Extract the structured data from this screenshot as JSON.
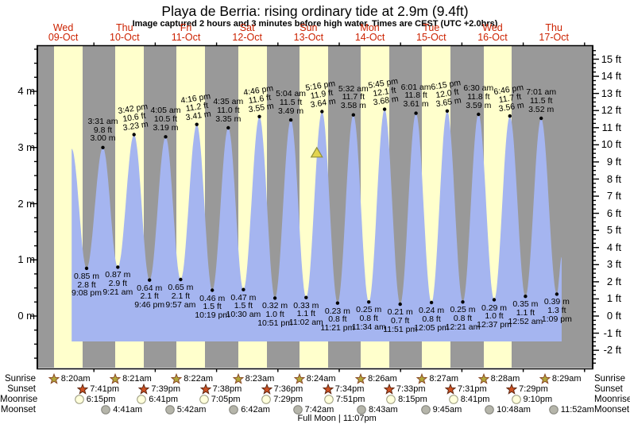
{
  "chart_data": {
    "type": "area",
    "title": "Playa de Berria: rising ordinary tide at 2.9m (9.4ft)",
    "subtitle": "Image captured 2 hours and 3 minutes before high water. Times are CEST (UTC +2.0hrs)",
    "days": [
      {
        "dow": "Wed",
        "date": "09-Oct"
      },
      {
        "dow": "Thu",
        "date": "10-Oct"
      },
      {
        "dow": "Fri",
        "date": "11-Oct"
      },
      {
        "dow": "Sat",
        "date": "12-Oct"
      },
      {
        "dow": "Sun",
        "date": "13-Oct"
      },
      {
        "dow": "Mon",
        "date": "14-Oct"
      },
      {
        "dow": "Tue",
        "date": "15-Oct"
      },
      {
        "dow": "Wed",
        "date": "16-Oct"
      },
      {
        "dow": "Thu",
        "date": "17-Oct"
      }
    ],
    "y_axis": {
      "left": {
        "unit": "m",
        "ticks": [
          {
            "v": 4,
            "label": "4 m"
          },
          {
            "v": 3,
            "label": "3 m"
          },
          {
            "v": 2,
            "label": "2 m"
          },
          {
            "v": 1,
            "label": "1 m"
          },
          {
            "v": 0,
            "label": "0 m"
          }
        ]
      },
      "right": {
        "unit": "ft",
        "ticks": [
          {
            "v": 15,
            "label": "15 ft"
          },
          {
            "v": 14,
            "label": "14 ft"
          },
          {
            "v": 13,
            "label": "13 ft"
          },
          {
            "v": 12,
            "label": "12 ft"
          },
          {
            "v": 11,
            "label": "11 ft"
          },
          {
            "v": 10,
            "label": "10 ft"
          },
          {
            "v": 9,
            "label": "9 ft"
          },
          {
            "v": 8,
            "label": "8 ft"
          },
          {
            "v": 7,
            "label": "7 ft"
          },
          {
            "v": 6,
            "label": "6 ft"
          },
          {
            "v": 5,
            "label": "5 ft"
          },
          {
            "v": 4,
            "label": "4 ft"
          },
          {
            "v": 3,
            "label": "3 ft"
          },
          {
            "v": 2,
            "label": "2 ft"
          },
          {
            "v": 1,
            "label": "1 ft"
          },
          {
            "v": 0,
            "label": "0 ft"
          },
          {
            "v": -1,
            "label": "-1 ft"
          },
          {
            "v": -2,
            "label": "-2 ft"
          }
        ]
      }
    },
    "events": [
      {
        "kind": "high",
        "t": 0.637,
        "v": 2.98,
        "labeled": false
      },
      {
        "kind": "low",
        "t": 0.8806,
        "v": 0.85,
        "m": "0.85 m",
        "ft": "2.8 ft",
        "time": "9:08 pm"
      },
      {
        "kind": "high",
        "t": 1.1465,
        "v": 3.0,
        "time": "3:31 am",
        "ft": "9.8 ft",
        "m": "3.00 m"
      },
      {
        "kind": "low",
        "t": 1.3896,
        "v": 0.87,
        "m": "0.87 m",
        "ft": "2.9 ft",
        "time": "9:21 am"
      },
      {
        "kind": "high",
        "t": 1.6542,
        "v": 3.23,
        "time": "3:42 pm",
        "ft": "10.6 ft",
        "m": "3.23 m",
        "tilt": true
      },
      {
        "kind": "low",
        "t": 1.9069,
        "v": 0.64,
        "m": "0.64 m",
        "ft": "2.1 ft",
        "time": "9:46 pm"
      },
      {
        "kind": "high",
        "t": 2.1701,
        "v": 3.19,
        "time": "4:05 am",
        "ft": "10.5 ft",
        "m": "3.19 m"
      },
      {
        "kind": "low",
        "t": 2.4146,
        "v": 0.65,
        "m": "0.65 m",
        "ft": "2.1 ft",
        "time": "9:57 am"
      },
      {
        "kind": "high",
        "t": 2.6778,
        "v": 3.41,
        "time": "4:16 pm",
        "ft": "11.2 ft",
        "m": "3.41 m",
        "tilt": true
      },
      {
        "kind": "low",
        "t": 2.9299,
        "v": 0.46,
        "m": "0.46 m",
        "ft": "1.5 ft",
        "time": "10:19 pm"
      },
      {
        "kind": "high",
        "t": 3.191,
        "v": 3.35,
        "time": "4:35 am",
        "ft": "11.0 ft",
        "m": "3.35 m"
      },
      {
        "kind": "low",
        "t": 3.4375,
        "v": 0.47,
        "m": "0.47 m",
        "ft": "1.5 ft",
        "time": "10:30 am"
      },
      {
        "kind": "high",
        "t": 3.6986,
        "v": 3.55,
        "time": "4:46 pm",
        "ft": "11.6 ft",
        "m": "3.55 m",
        "tilt": true
      },
      {
        "kind": "low",
        "t": 3.9521,
        "v": 0.32,
        "m": "0.32 m",
        "ft": "1.0 ft",
        "time": "10:51 pm"
      },
      {
        "kind": "high",
        "t": 4.2111,
        "v": 3.49,
        "time": "5:04 am",
        "ft": "11.5 ft",
        "m": "3.49 m"
      },
      {
        "kind": "low",
        "t": 4.4597,
        "v": 0.33,
        "m": "0.33 m",
        "ft": "1.1 ft",
        "time": "11:02 am"
      },
      {
        "kind": "high",
        "t": 4.7194,
        "v": 3.64,
        "time": "5:16 pm",
        "ft": "11.9 ft",
        "m": "3.64 m",
        "tilt": true
      },
      {
        "kind": "low",
        "t": 4.9729,
        "v": 0.23,
        "m": "0.23 m",
        "ft": "0.8 ft",
        "time": "11:21 pm"
      },
      {
        "kind": "high",
        "t": 5.2306,
        "v": 3.58,
        "time": "5:32 am",
        "ft": "11.7 ft",
        "m": "3.58 m"
      },
      {
        "kind": "low",
        "t": 5.4819,
        "v": 0.25,
        "m": "0.25 m",
        "ft": "0.8 ft",
        "time": "11:34 am"
      },
      {
        "kind": "high",
        "t": 5.7396,
        "v": 3.68,
        "time": "5:45 pm",
        "ft": "12.1 ft",
        "m": "3.68 m",
        "tilt": true
      },
      {
        "kind": "low",
        "t": 5.9938,
        "v": 0.21,
        "m": "0.21 m",
        "ft": "0.7 ft",
        "time": "11:51 pm"
      },
      {
        "kind": "high",
        "t": 6.2507,
        "v": 3.61,
        "time": "6:01 am",
        "ft": "11.8 ft",
        "m": "3.61 m"
      },
      {
        "kind": "low",
        "t": 6.5035,
        "v": 0.24,
        "m": "0.24 m",
        "ft": "0.8 ft",
        "time": "12:05 pm"
      },
      {
        "kind": "high",
        "t": 6.7604,
        "v": 3.65,
        "time": "6:15 pm",
        "ft": "12.0 ft",
        "m": "3.65 m",
        "tilt": true
      },
      {
        "kind": "low",
        "t": 7.0146,
        "v": 0.25,
        "m": "0.25 m",
        "ft": "0.8 ft",
        "time": "12:21 am"
      },
      {
        "kind": "high",
        "t": 7.2708,
        "v": 3.59,
        "time": "6:30 am",
        "ft": "11.8 ft",
        "m": "3.59 m"
      },
      {
        "kind": "low",
        "t": 7.5257,
        "v": 0.29,
        "m": "0.29 m",
        "ft": "1.0 ft",
        "time": "12:37 pm"
      },
      {
        "kind": "high",
        "t": 7.7819,
        "v": 3.56,
        "time": "6:46 pm",
        "ft": "11.7 ft",
        "m": "3.56 m",
        "tilt": true
      },
      {
        "kind": "low",
        "t": 8.0361,
        "v": 0.35,
        "m": "0.35 m",
        "ft": "1.1 ft",
        "time": "12:52 am"
      },
      {
        "kind": "high",
        "t": 8.2924,
        "v": 3.52,
        "time": "7:01 am",
        "ft": "11.5 ft",
        "m": "3.52 m"
      },
      {
        "kind": "low",
        "t": 8.5479,
        "v": 0.39,
        "m": "0.39 m",
        "ft": "1.3 ft",
        "time": "1:09 pm"
      }
    ],
    "curve": {
      "end": {
        "t": 8.627,
        "v": 1.05
      },
      "fill_bottom_v": -0.452
    },
    "capture_marker": {
      "t": 4.634,
      "v": 2.9
    }
  },
  "almanac": {
    "rows": [
      {
        "key": "sunrise",
        "label": "Sunrise",
        "entries": [
          {
            "t": 0.3472,
            "time": "8:20am"
          },
          {
            "t": 1.3479,
            "time": "8:21am"
          },
          {
            "t": 2.3486,
            "time": "8:22am"
          },
          {
            "t": 3.3493,
            "time": "8:23am"
          },
          {
            "t": 4.35,
            "time": "8:24am"
          },
          {
            "t": 5.3514,
            "time": "8:26am"
          },
          {
            "t": 6.3521,
            "time": "8:27am"
          },
          {
            "t": 7.3528,
            "time": "8:28am"
          },
          {
            "t": 8.3535,
            "time": "8:29am"
          }
        ]
      },
      {
        "key": "sunset",
        "label": "Sunset",
        "entries": [
          {
            "t": 0.8201,
            "time": "7:41pm"
          },
          {
            "t": 1.8188,
            "time": "7:39pm"
          },
          {
            "t": 2.8181,
            "time": "7:38pm"
          },
          {
            "t": 3.8167,
            "time": "7:36pm"
          },
          {
            "t": 4.8153,
            "time": "7:34pm"
          },
          {
            "t": 5.8146,
            "time": "7:33pm"
          },
          {
            "t": 6.8132,
            "time": "7:31pm"
          },
          {
            "t": 7.8118,
            "time": "7:29pm"
          }
        ]
      },
      {
        "key": "moonrise",
        "label": "Moonrise",
        "entries": [
          {
            "t": 0.7604,
            "time": "6:15pm"
          },
          {
            "t": 1.7785,
            "time": "6:41pm"
          },
          {
            "t": 2.7951,
            "time": "7:05pm"
          },
          {
            "t": 3.8118,
            "time": "7:29pm"
          },
          {
            "t": 4.8271,
            "time": "7:51pm"
          },
          {
            "t": 5.8438,
            "time": "8:15pm"
          },
          {
            "t": 6.8618,
            "time": "8:41pm"
          },
          {
            "t": 7.8819,
            "time": "9:10pm"
          }
        ]
      },
      {
        "key": "moonset",
        "label": "Moonset",
        "entries": [
          {
            "t": 1.1951,
            "time": "4:41am"
          },
          {
            "t": 2.2375,
            "time": "5:42am"
          },
          {
            "t": 3.2792,
            "time": "6:42am"
          },
          {
            "t": 4.3208,
            "time": "7:42am"
          },
          {
            "t": 5.3632,
            "time": "8:43am"
          },
          {
            "t": 6.4063,
            "time": "9:45am"
          },
          {
            "t": 7.45,
            "time": "10:48am"
          },
          {
            "t": 8.4944,
            "time": "11:52am"
          }
        ]
      }
    ],
    "moon_note": {
      "t": 4.9632,
      "text": "Full Moon | 11:07pm"
    }
  },
  "colors": {
    "night_band": "#999999",
    "day_band": "#ffffcc",
    "water": "#a5b5f0",
    "date_label": "#cc2200",
    "axis": "#000000",
    "sunrise_star_fill": "#b2a639",
    "sunrise_star_stroke": "#8a4a28",
    "sunset_star_fill": "#cc5022",
    "sunset_star_stroke": "#5f2812",
    "moonrise_fill": "#ffffdc",
    "moonrise_stroke": "#99997d",
    "moonset_fill": "#b5b5aa",
    "moonset_stroke": "#82827a",
    "marker_fill": "#e2d44f",
    "marker_stroke": "#8f8f3a"
  }
}
